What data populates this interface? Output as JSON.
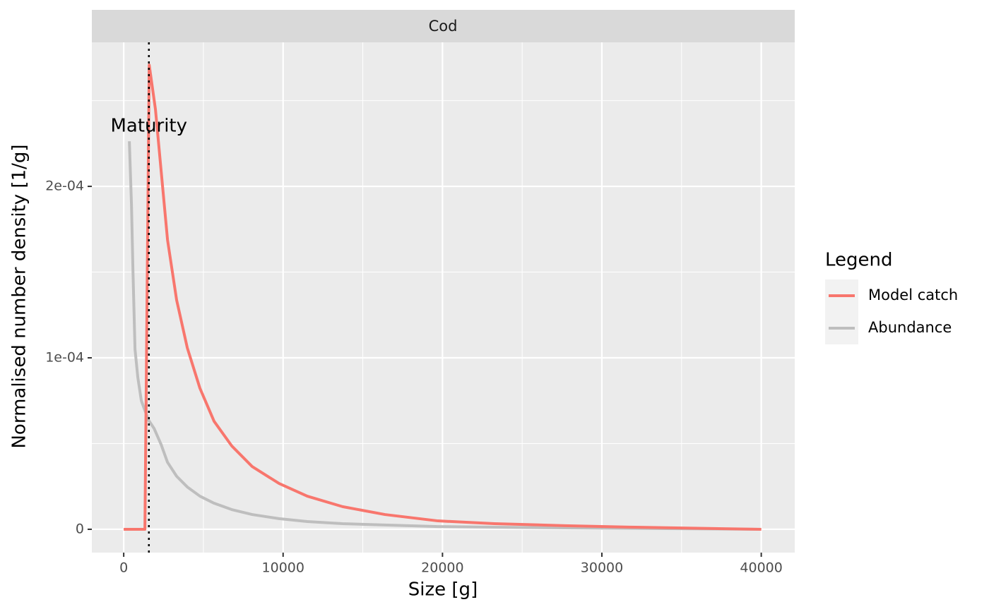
{
  "chart_data": {
    "type": "line",
    "facet": "Cod",
    "xlabel": "Size [g]",
    "ylabel": "Normalised number density [1/g]",
    "legend_title": "Legend",
    "legend_position": "right",
    "grid": true,
    "xlim": [
      -2000,
      42100
    ],
    "ylim": [
      -1.36e-05,
      0.000284
    ],
    "xticks": [
      0,
      10000,
      20000,
      30000,
      40000
    ],
    "yticks": [
      0,
      {
        "value": 0.0001,
        "label": "1e-04"
      },
      {
        "value": 0.0002,
        "label": "2e-04"
      }
    ],
    "xminor": [
      5000,
      15000,
      25000,
      35000
    ],
    "yminor": [
      5e-05,
      0.00015,
      0.00025
    ],
    "vline": {
      "x": 1580,
      "label": "Maturity",
      "label_y": 0.000235
    },
    "series": [
      {
        "name": "Model catch",
        "color": "#F8766D",
        "x": [
          0,
          1330,
          1600,
          1990,
          2750,
          3320,
          3990,
          4780,
          5670,
          6780,
          8060,
          9750,
          11520,
          13730,
          16390,
          19710,
          23260,
          27690,
          32100,
          40000
        ],
        "values": [
          0,
          0,
          0.0002708,
          0.000245,
          0.0001687,
          0.0001337,
          0.0001058,
          8.23e-05,
          6.3e-05,
          4.86e-05,
          3.66e-05,
          2.67e-05,
          1.93e-05,
          1.32e-05,
          8.6e-06,
          4.9e-06,
          3.3e-06,
          2.1e-06,
          1.2e-06,
          0
        ]
      },
      {
        "name": "Abundance",
        "color": "#BEBEBE",
        "x": [
          354,
          487,
          576,
          709,
          886,
          1107,
          1550,
          1905,
          2348,
          2746,
          3322,
          3987,
          4784,
          5670,
          6777,
          8062,
          9745,
          11517,
          13732,
          16390,
          19712,
          23256,
          27685,
          40000
        ],
        "values": [
          0.0002263,
          0.0001893,
          0.0001523,
          0.000105,
          8.85e-05,
          7.49e-05,
          6.38e-05,
          5.88e-05,
          4.94e-05,
          3.91e-05,
          3.09e-05,
          2.47e-05,
          1.93e-05,
          1.52e-05,
          1.15e-05,
          8.6e-06,
          6.2e-06,
          4.5e-06,
          3.3e-06,
          2.5e-06,
          1.6e-06,
          1.2e-06,
          8e-07,
          0
        ]
      }
    ]
  }
}
